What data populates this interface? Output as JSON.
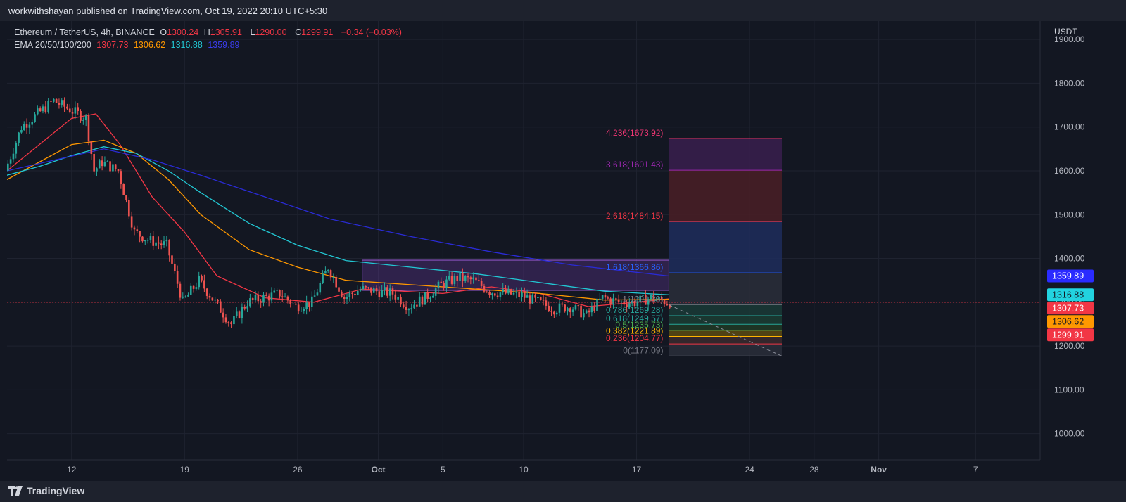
{
  "header": {
    "publish_line": "workwithshayan published on TradingView.com, Oct 19, 2022 20:10 UTC+5:30"
  },
  "legend": {
    "symbol": "Ethereum / TetherUS, 4h, BINANCE",
    "o_label": "O",
    "o_value": "1300.24",
    "h_label": "H",
    "h_value": "1305.91",
    "l_label": "L",
    "l_value": "1290.00",
    "c_label": "C",
    "c_value": "1299.91",
    "change": "−0.34 (−0.03%)",
    "ema_label": "EMA 20/50/100/200",
    "ema20": "1307.73",
    "ema50": "1306.62",
    "ema100": "1316.88",
    "ema200": "1359.89"
  },
  "footer": {
    "brand": "TradingView"
  },
  "colors": {
    "up": "#26a69a",
    "down": "#ef5350",
    "ema20": "#f23645",
    "ema50": "#ff9800",
    "ema100": "#22c7d3",
    "ema200": "#2a2bd6",
    "background": "#131722"
  },
  "chart_data": {
    "type": "candlestick",
    "title": "Ethereum / TetherUS, 4h, BINANCE",
    "y_axis": {
      "unit": "USDT",
      "ticks": [
        1000,
        1100,
        1200,
        1300,
        1400,
        1500,
        1600,
        1700,
        1800,
        1900
      ],
      "tick_labels": [
        "1000.00",
        "1100.00",
        "1200.00",
        "1300.00",
        "1400.00",
        "1500.00",
        "1600.00",
        "1700.00",
        "1800.00",
        "1900.00"
      ],
      "range": [
        940,
        1942
      ]
    },
    "x_axis": {
      "range": [
        "2022-09-08",
        "2022-11-11"
      ],
      "ticks": [
        {
          "date": "2022-09-12",
          "label": "12"
        },
        {
          "date": "2022-09-19",
          "label": "19"
        },
        {
          "date": "2022-09-26",
          "label": "26"
        },
        {
          "date": "2022-10-01",
          "label": "Oct"
        },
        {
          "date": "2022-10-05",
          "label": "5"
        },
        {
          "date": "2022-10-10",
          "label": "10"
        },
        {
          "date": "2022-10-17",
          "label": "17"
        },
        {
          "date": "2022-10-24",
          "label": "24"
        },
        {
          "date": "2022-10-28",
          "label": "28"
        },
        {
          "date": "2022-11-01",
          "label": "Nov"
        },
        {
          "date": "2022-11-07",
          "label": "7"
        }
      ]
    },
    "price_path": [
      [
        "2022-09-08",
        1600
      ],
      [
        "2022-09-09",
        1700
      ],
      [
        "2022-09-10",
        1730
      ],
      [
        "2022-09-11",
        1760
      ],
      [
        "2022-09-12",
        1740
      ],
      [
        "2022-09-13",
        1720
      ],
      [
        "2022-09-13T12",
        1600
      ],
      [
        "2022-09-14",
        1620
      ],
      [
        "2022-09-15",
        1600
      ],
      [
        "2022-09-16",
        1460
      ],
      [
        "2022-09-17",
        1440
      ],
      [
        "2022-09-18",
        1430
      ],
      [
        "2022-09-19",
        1300
      ],
      [
        "2022-09-20",
        1350
      ],
      [
        "2022-09-21",
        1300
      ],
      [
        "2022-09-22",
        1250
      ],
      [
        "2022-09-23",
        1300
      ],
      [
        "2022-09-24",
        1310
      ],
      [
        "2022-09-25",
        1320
      ],
      [
        "2022-09-26",
        1290
      ],
      [
        "2022-09-27",
        1300
      ],
      [
        "2022-09-28",
        1380
      ],
      [
        "2022-09-29",
        1310
      ],
      [
        "2022-09-30",
        1330
      ],
      [
        "2022-10-01",
        1325
      ],
      [
        "2022-10-02",
        1320
      ],
      [
        "2022-10-03",
        1290
      ],
      [
        "2022-10-04",
        1310
      ],
      [
        "2022-10-05",
        1340
      ],
      [
        "2022-10-06",
        1355
      ],
      [
        "2022-10-07",
        1350
      ],
      [
        "2022-10-08",
        1325
      ],
      [
        "2022-10-09",
        1320
      ],
      [
        "2022-10-10",
        1315
      ],
      [
        "2022-10-11",
        1300
      ],
      [
        "2022-10-12",
        1285
      ],
      [
        "2022-10-13",
        1290
      ],
      [
        "2022-10-14",
        1270
      ],
      [
        "2022-10-15",
        1310
      ],
      [
        "2022-10-16",
        1300
      ],
      [
        "2022-10-17",
        1300
      ],
      [
        "2022-10-18",
        1310
      ],
      [
        "2022-10-19",
        1300
      ]
    ],
    "emas": [
      {
        "name": "EMA 20",
        "last": 1307.73,
        "points": [
          [
            "2022-09-08",
            1600
          ],
          [
            "2022-09-10",
            1660
          ],
          [
            "2022-09-12",
            1720
          ],
          [
            "2022-09-13T12",
            1730
          ],
          [
            "2022-09-15",
            1660
          ],
          [
            "2022-09-17",
            1540
          ],
          [
            "2022-09-19",
            1460
          ],
          [
            "2022-09-21",
            1360
          ],
          [
            "2022-09-24",
            1310
          ],
          [
            "2022-09-27",
            1300
          ],
          [
            "2022-09-30",
            1330
          ],
          [
            "2022-10-05",
            1320
          ],
          [
            "2022-10-08",
            1335
          ],
          [
            "2022-10-11",
            1320
          ],
          [
            "2022-10-14",
            1290
          ],
          [
            "2022-10-17",
            1300
          ],
          [
            "2022-10-19",
            1307.73
          ]
        ]
      },
      {
        "name": "EMA 50",
        "last": 1306.62,
        "points": [
          [
            "2022-09-08",
            1580
          ],
          [
            "2022-09-10",
            1620
          ],
          [
            "2022-09-12",
            1660
          ],
          [
            "2022-09-14",
            1670
          ],
          [
            "2022-09-16",
            1640
          ],
          [
            "2022-09-18",
            1580
          ],
          [
            "2022-09-20",
            1500
          ],
          [
            "2022-09-23",
            1420
          ],
          [
            "2022-09-26",
            1380
          ],
          [
            "2022-09-29",
            1350
          ],
          [
            "2022-10-03",
            1340
          ],
          [
            "2022-10-07",
            1330
          ],
          [
            "2022-10-11",
            1320
          ],
          [
            "2022-10-15",
            1305
          ],
          [
            "2022-10-19",
            1306.62
          ]
        ]
      },
      {
        "name": "EMA 100",
        "last": 1316.88,
        "points": [
          [
            "2022-09-08",
            1590
          ],
          [
            "2022-09-10",
            1610
          ],
          [
            "2022-09-12",
            1635
          ],
          [
            "2022-09-14",
            1655
          ],
          [
            "2022-09-16",
            1640
          ],
          [
            "2022-09-18",
            1600
          ],
          [
            "2022-09-20",
            1550
          ],
          [
            "2022-09-23",
            1480
          ],
          [
            "2022-09-26",
            1430
          ],
          [
            "2022-09-29",
            1395
          ],
          [
            "2022-10-03",
            1380
          ],
          [
            "2022-10-07",
            1365
          ],
          [
            "2022-10-11",
            1345
          ],
          [
            "2022-10-15",
            1325
          ],
          [
            "2022-10-19",
            1316.88
          ]
        ]
      },
      {
        "name": "EMA 200",
        "last": 1359.89,
        "points": [
          [
            "2022-09-08",
            1600
          ],
          [
            "2022-09-11",
            1625
          ],
          [
            "2022-09-14",
            1650
          ],
          [
            "2022-09-17",
            1625
          ],
          [
            "2022-09-20",
            1590
          ],
          [
            "2022-09-24",
            1540
          ],
          [
            "2022-09-28",
            1490
          ],
          [
            "2022-10-03",
            1450
          ],
          [
            "2022-10-08",
            1415
          ],
          [
            "2022-10-13",
            1385
          ],
          [
            "2022-10-19",
            1359.89
          ]
        ]
      }
    ],
    "current_price": 1299.91,
    "price_labels": [
      {
        "value": 1359.89,
        "label": "1359.89",
        "color": "#2a2bff",
        "text_color": "#ffffff"
      },
      {
        "value": 1316.88,
        "label": "1316.88",
        "color": "#22d3e0",
        "text_color": "#131722"
      },
      {
        "value": 1307.73,
        "label": "1307.73",
        "color": "#f23645",
        "text_color": "#ffffff"
      },
      {
        "value": 1306.62,
        "label": "1306.62",
        "color": "#ff9800",
        "text_color": "#131722"
      },
      {
        "value": 1299.91,
        "label": "1299.91",
        "color": "#f23645",
        "text_color": "#ffffff"
      }
    ],
    "range_box": {
      "from": "2022-09-30",
      "to": "2022-10-19",
      "top": 1396,
      "bottom": 1327
    },
    "fib_extension": {
      "from": "2022-10-19",
      "to": "2022-10-26",
      "levels": [
        {
          "ratio": "4.236",
          "value": 1673.92,
          "label": "4.236(1673.92)",
          "color": "#f23674",
          "fill": "#5a2238"
        },
        {
          "ratio": "3.618",
          "value": 1601.43,
          "label": "3.618(1601.43)",
          "color": "#9c27b0",
          "fill": "#3a1f4e"
        },
        {
          "ratio": "2.618",
          "value": 1484.15,
          "label": "2.618(1484.15)",
          "color": "#f23645",
          "fill": "#4a1f26"
        },
        {
          "ratio": "1.618",
          "value": 1366.86,
          "label": "1.618(1366.86)",
          "color": "#2962ff",
          "fill": "#1e2d5c"
        },
        {
          "ratio": "1",
          "value": 1294.38,
          "label": "1(1294.38)",
          "color": "#787b86",
          "fill": "#2a2e39"
        },
        {
          "ratio": "0.786",
          "value": 1269.28,
          "label": "0.786(1269.28)",
          "color": "#26a69a",
          "fill": "#1a3a36"
        },
        {
          "ratio": "0.618",
          "value": 1249.57,
          "label": "0.618(1249.57)",
          "color": "#26a69a",
          "fill": "#1b3d33"
        },
        {
          "ratio": "0.5",
          "value": 1235.73,
          "label": "0.5(1235.73)",
          "color": "#4caf50",
          "fill": "#203a24"
        },
        {
          "ratio": "0.382",
          "value": 1221.89,
          "label": "0.382(1221.89)",
          "color": "#ffb300",
          "fill": "#5c4a12"
        },
        {
          "ratio": "0.236",
          "value": 1204.77,
          "label": "0.236(1204.77)",
          "color": "#f23645",
          "fill": "#3a2a2e"
        },
        {
          "ratio": "0",
          "value": 1177.09,
          "label": "0(1177.09)",
          "color": "#787b86",
          "fill": "#2a2e39"
        }
      ]
    },
    "projection_line": {
      "from": [
        "2022-10-19",
        1294
      ],
      "to": [
        "2022-10-26",
        1177
      ]
    },
    "grid": true
  }
}
